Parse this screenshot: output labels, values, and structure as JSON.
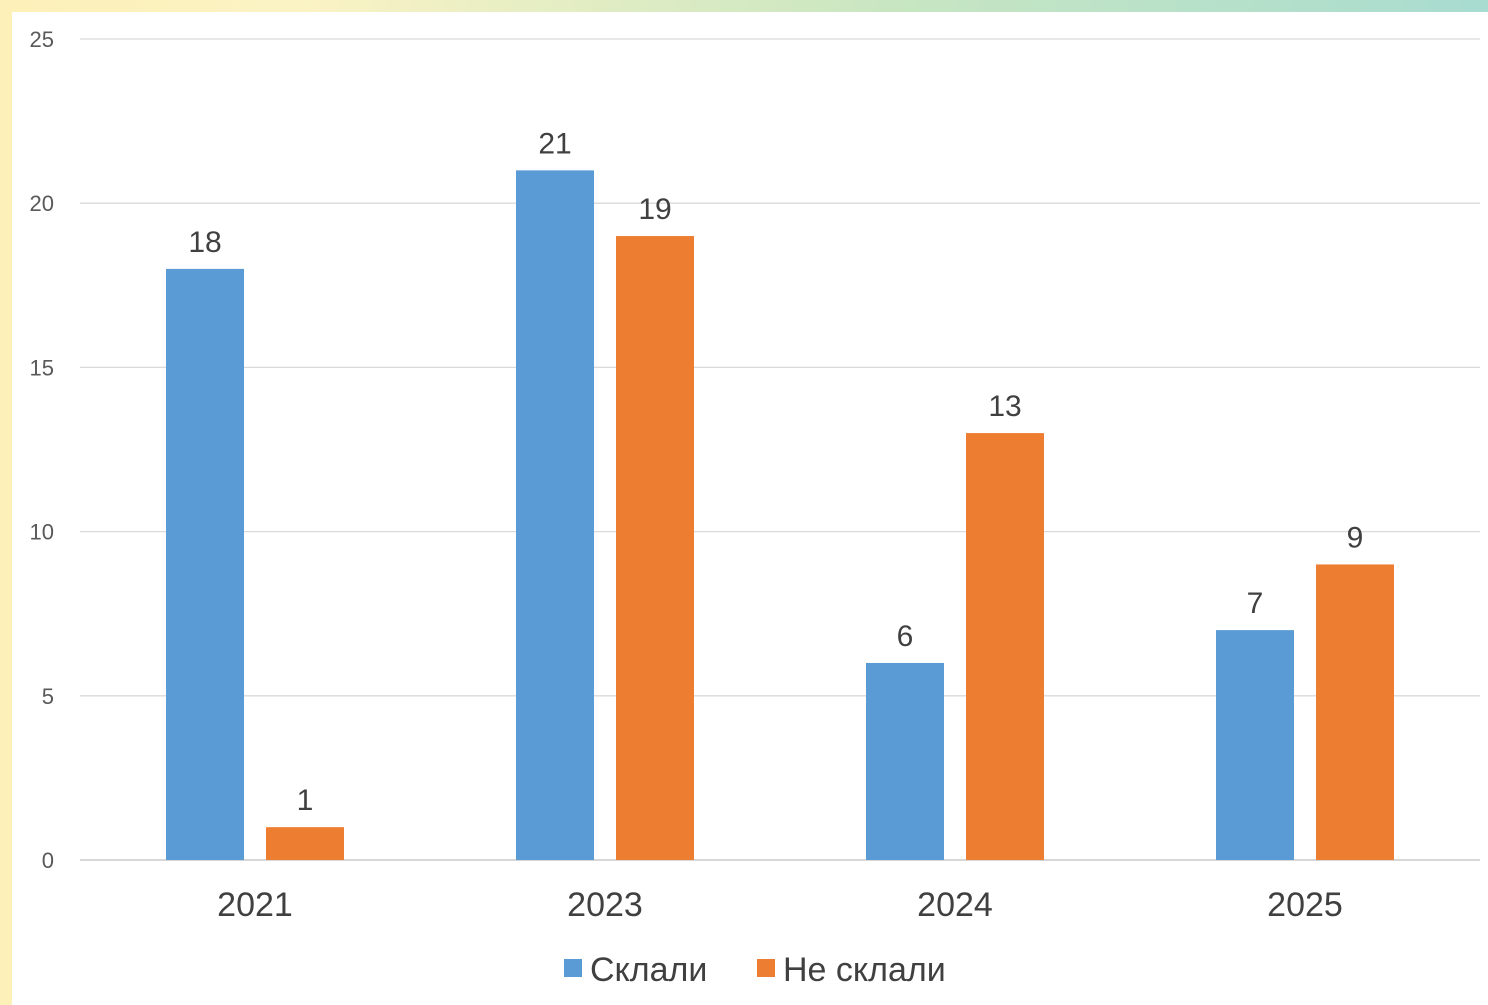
{
  "chart_data": {
    "type": "bar",
    "title": "",
    "xlabel": "",
    "ylabel": "",
    "categories": [
      "2021",
      "2023",
      "2024",
      "2025"
    ],
    "series": [
      {
        "name": "Склали",
        "values": [
          18,
          21,
          6,
          7
        ],
        "color": "#5b9bd5"
      },
      {
        "name": "Не склали",
        "values": [
          1,
          19,
          13,
          9
        ],
        "color": "#ed7d31"
      }
    ],
    "ylim": [
      0,
      25
    ],
    "yticks": [
      0,
      5,
      10,
      15,
      20,
      25
    ],
    "grid": true,
    "legend_position": "bottom",
    "data_labels": true
  }
}
